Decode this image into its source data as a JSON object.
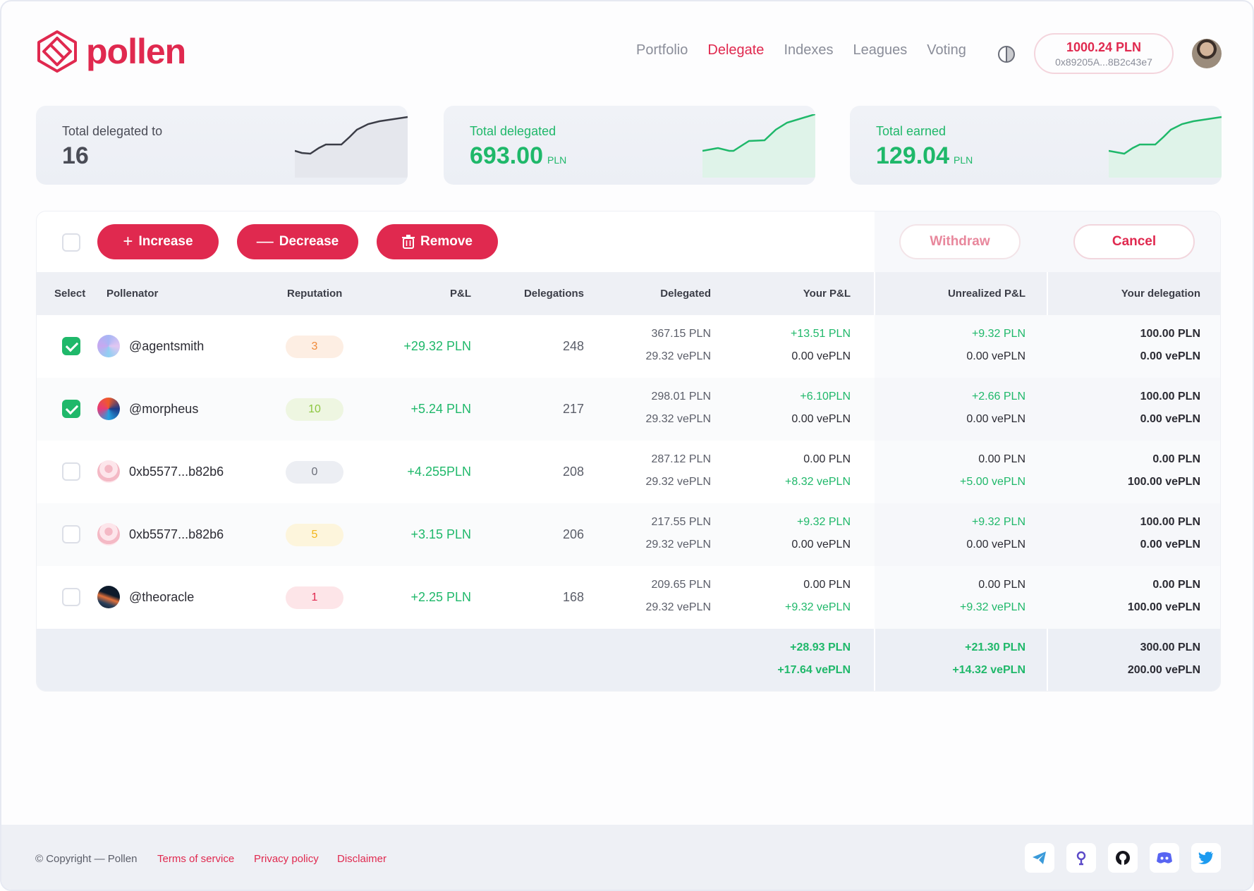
{
  "header": {
    "brand": "pollen",
    "nav": [
      "Portfolio",
      "Delegate",
      "Indexes",
      "Leagues",
      "Voting"
    ],
    "active_nav": "Delegate",
    "wallet": {
      "balance": "1000.24 PLN",
      "address": "0x89205A...8B2c43e7"
    }
  },
  "stats": [
    {
      "label": "Total delegated to",
      "value": "16",
      "unit": ""
    },
    {
      "label": "Total delegated",
      "value": "693.00",
      "unit": "PLN"
    },
    {
      "label": "Total earned",
      "value": "129.04",
      "unit": "PLN"
    }
  ],
  "toolbar": {
    "increase": "Increase",
    "decrease": "Decrease",
    "remove": "Remove",
    "withdraw": "Withdraw",
    "cancel": "Cancel"
  },
  "table": {
    "columns": {
      "select": "Select",
      "pollenator": "Pollenator",
      "reputation": "Reputation",
      "pnl": "P&L",
      "delegations": "Delegations",
      "delegated": "Delegated",
      "your_pnl": "Your P&L",
      "unrealized_pnl": "Unrealized P&L",
      "your_delegation": "Your delegation"
    },
    "rows": [
      {
        "checked": true,
        "name": "@agentsmith",
        "reputation": "3",
        "pnl": "+29.32 PLN",
        "delegations": "248",
        "delegated_pln": "367.15 PLN",
        "delegated_vepln": "29.32 vePLN",
        "your_pnl_pln": "+13.51 PLN",
        "your_pnl_vepln": "0.00 vePLN",
        "unreal_pln": "+9.32 PLN",
        "unreal_vepln": "0.00 vePLN",
        "yourdel_pln": "100.00 PLN",
        "yourdel_vepln": "0.00 vePLN"
      },
      {
        "checked": true,
        "name": "@morpheus",
        "reputation": "10",
        "pnl": "+5.24 PLN",
        "delegations": "217",
        "delegated_pln": "298.01 PLN",
        "delegated_vepln": "29.32 vePLN",
        "your_pnl_pln": "+6.10PLN",
        "your_pnl_vepln": "0.00 vePLN",
        "unreal_pln": "+2.66 PLN",
        "unreal_vepln": "0.00 vePLN",
        "yourdel_pln": "100.00 PLN",
        "yourdel_vepln": "0.00 vePLN"
      },
      {
        "checked": false,
        "name": "0xb5577...b82b6",
        "reputation": "0",
        "pnl": "+4.255PLN",
        "delegations": "208",
        "delegated_pln": "287.12 PLN",
        "delegated_vepln": "29.32 vePLN",
        "your_pnl_pln": "0.00 PLN",
        "your_pnl_vepln": "+8.32 vePLN",
        "unreal_pln": "0.00 PLN",
        "unreal_vepln": "+5.00 vePLN",
        "yourdel_pln": "0.00 PLN",
        "yourdel_vepln": "100.00 vePLN"
      },
      {
        "checked": false,
        "name": "0xb5577...b82b6",
        "reputation": "5",
        "pnl": "+3.15 PLN",
        "delegations": "206",
        "delegated_pln": "217.55 PLN",
        "delegated_vepln": "29.32 vePLN",
        "your_pnl_pln": "+9.32 PLN",
        "your_pnl_vepln": "0.00 vePLN",
        "unreal_pln": "+9.32 PLN",
        "unreal_vepln": "0.00 vePLN",
        "yourdel_pln": "100.00 PLN",
        "yourdel_vepln": "0.00 vePLN"
      },
      {
        "checked": false,
        "name": "@theoracle",
        "reputation": "1",
        "pnl": "+2.25 PLN",
        "delegations": "168",
        "delegated_pln": "209.65 PLN",
        "delegated_vepln": "29.32 vePLN",
        "your_pnl_pln": "0.00 PLN",
        "your_pnl_vepln": "+9.32 vePLN",
        "unreal_pln": "0.00 PLN",
        "unreal_vepln": "+9.32 vePLN",
        "yourdel_pln": "0.00 PLN",
        "yourdel_vepln": "100.00 vePLN"
      }
    ],
    "totals": {
      "your_pnl_pln": "+28.93 PLN",
      "your_pnl_vepln": "+17.64 vePLN",
      "unreal_pln": "+21.30 PLN",
      "unreal_vepln": "+14.32 vePLN",
      "yourdel_pln": "300.00 PLN",
      "yourdel_vepln": "200.00 vePLN"
    }
  },
  "footer": {
    "copyright": "© Copyright — Pollen",
    "links": [
      "Terms of service",
      "Privacy policy",
      "Disclaimer"
    ],
    "social_icons": [
      "telegram-icon",
      "gitcoin-icon",
      "github-icon",
      "discord-icon",
      "twitter-icon"
    ]
  },
  "colors": {
    "accent": "#e0294f",
    "positive": "#1fb86a"
  }
}
